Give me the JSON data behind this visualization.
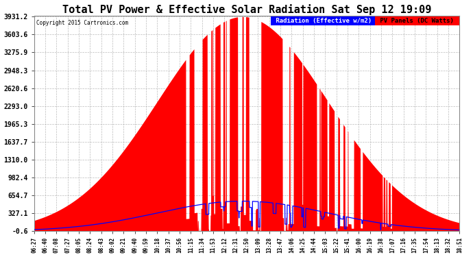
{
  "title": "Total PV Power & Effective Solar Radiation Sat Sep 12 19:09",
  "copyright": "Copyright 2015 Cartronics.com",
  "legend_blue": "Radiation (Effective w/m2)",
  "legend_red": "PV Panels (DC Watts)",
  "ymin": -0.6,
  "ymax": 3931.2,
  "yticks": [
    -0.6,
    327.1,
    654.7,
    982.4,
    1310.0,
    1637.7,
    1965.3,
    2293.0,
    2620.6,
    2948.3,
    3275.9,
    3603.6,
    3931.2
  ],
  "background_color": "#ffffff",
  "plot_bg_color": "#ffffff",
  "grid_color": "#aaaaaa",
  "title_color": "#000000",
  "title_fontsize": 11,
  "red_color": "#ff0000",
  "blue_color": "#0000ff",
  "xtick_labels": [
    "06:27",
    "06:40",
    "07:08",
    "07:27",
    "08:05",
    "08:24",
    "08:43",
    "09:02",
    "09:21",
    "09:40",
    "09:59",
    "10:18",
    "10:37",
    "10:56",
    "11:15",
    "11:34",
    "11:53",
    "12:12",
    "12:31",
    "12:50",
    "13:09",
    "13:28",
    "13:47",
    "14:06",
    "14:25",
    "14:44",
    "15:03",
    "15:22",
    "15:41",
    "16:00",
    "16:19",
    "16:38",
    "17:07",
    "17:16",
    "17:35",
    "17:54",
    "18:13",
    "18:32",
    "18:51"
  ]
}
